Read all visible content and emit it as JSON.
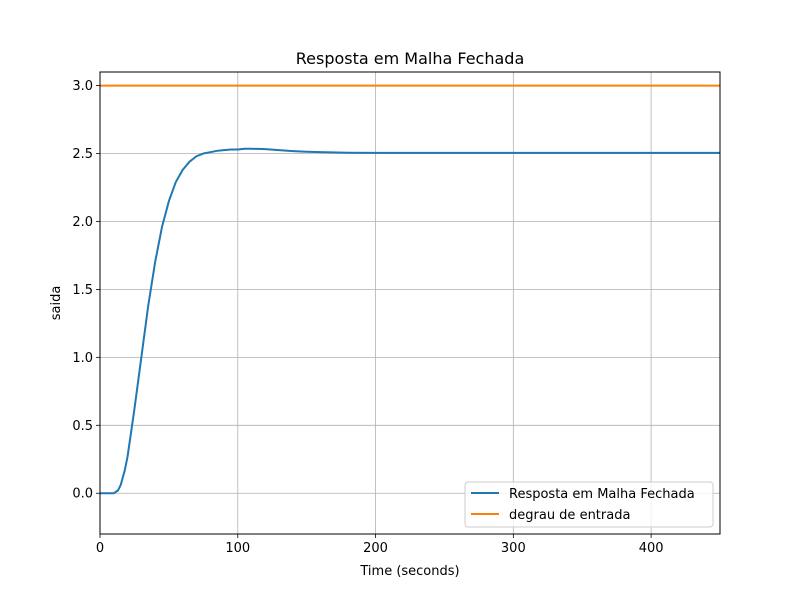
{
  "chart_data": {
    "type": "line",
    "title": "Resposta em Malha Fechada",
    "xlabel": "Time (seconds)",
    "ylabel": "saida",
    "xlim": [
      0,
      450
    ],
    "ylim": [
      -0.3,
      3.1
    ],
    "xticks": [
      0,
      100,
      200,
      300,
      400
    ],
    "yticks": [
      0.0,
      0.5,
      1.0,
      1.5,
      2.0,
      2.5,
      3.0
    ],
    "xtick_labels": [
      "0",
      "100",
      "200",
      "300",
      "400"
    ],
    "ytick_labels": [
      "0.0",
      "0.5",
      "1.0",
      "1.5",
      "2.0",
      "2.5",
      "3.0"
    ],
    "grid": true,
    "legend_position": "lower-right",
    "series": [
      {
        "name": "Resposta em Malha Fechada",
        "color": "#1f77b4",
        "x": [
          0,
          5,
          10,
          13,
          15,
          18,
          20,
          25,
          30,
          35,
          40,
          45,
          50,
          55,
          60,
          65,
          70,
          75,
          80,
          85,
          90,
          95,
          100,
          105,
          110,
          115,
          120,
          130,
          140,
          150,
          160,
          180,
          200,
          250,
          300,
          350,
          400,
          450
        ],
        "y": [
          0,
          0,
          0,
          0.02,
          0.06,
          0.17,
          0.27,
          0.62,
          1.0,
          1.38,
          1.7,
          1.96,
          2.15,
          2.29,
          2.38,
          2.44,
          2.48,
          2.5,
          2.51,
          2.52,
          2.525,
          2.53,
          2.53,
          2.535,
          2.535,
          2.534,
          2.532,
          2.525,
          2.518,
          2.513,
          2.51,
          2.506,
          2.505,
          2.505,
          2.505,
          2.505,
          2.505,
          2.505
        ]
      },
      {
        "name": "degrau de entrada",
        "color": "#ff7f0e",
        "x": [
          0,
          450
        ],
        "y": [
          3.0,
          3.0
        ]
      }
    ]
  }
}
